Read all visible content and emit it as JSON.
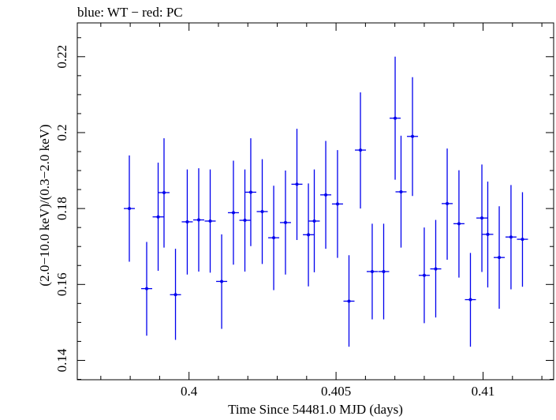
{
  "chart_data": {
    "type": "scatter",
    "title": "blue: WT − red: PC",
    "xlabel": "Time Since 54481.0 MJD (days)",
    "ylabel": "(2.0−10.0 keV)/(0.3−2.0 keV)",
    "xlim": [
      0.3962,
      0.4124
    ],
    "ylim": [
      0.1349,
      0.2289
    ],
    "xticks": [
      0.4,
      0.405,
      0.41
    ],
    "xtick_labels": [
      "0.4",
      "0.405",
      "0.41"
    ],
    "yticks": [
      0.14,
      0.16,
      0.18,
      0.2,
      0.22
    ],
    "ytick_labels": [
      "0.14",
      "0.16",
      "0.18",
      "0.2",
      "0.22"
    ],
    "grid": false,
    "color": "#0000ee",
    "series": [
      {
        "points": [
          {
            "x": 0.39797,
            "y": 0.18,
            "yerr_low": 0.166,
            "yerr_high": 0.194
          },
          {
            "x": 0.39856,
            "y": 0.1589,
            "yerr_low": 0.1465,
            "yerr_high": 0.1712
          },
          {
            "x": 0.39895,
            "y": 0.1778,
            "yerr_low": 0.1636,
            "yerr_high": 0.1921
          },
          {
            "x": 0.39915,
            "y": 0.1842,
            "yerr_low": 0.1697,
            "yerr_high": 0.1985
          },
          {
            "x": 0.39954,
            "y": 0.1573,
            "yerr_low": 0.1454,
            "yerr_high": 0.1694
          },
          {
            "x": 0.39994,
            "y": 0.1765,
            "yerr_low": 0.1626,
            "yerr_high": 0.1903
          },
          {
            "x": 0.40033,
            "y": 0.177,
            "yerr_low": 0.1634,
            "yerr_high": 0.1906
          },
          {
            "x": 0.40072,
            "y": 0.1767,
            "yerr_low": 0.1631,
            "yerr_high": 0.1903
          },
          {
            "x": 0.40111,
            "y": 0.1608,
            "yerr_low": 0.1483,
            "yerr_high": 0.1732
          },
          {
            "x": 0.40151,
            "y": 0.1789,
            "yerr_low": 0.1652,
            "yerr_high": 0.1926
          },
          {
            "x": 0.4019,
            "y": 0.1769,
            "yerr_low": 0.1634,
            "yerr_high": 0.1903
          },
          {
            "x": 0.4021,
            "y": 0.1843,
            "yerr_low": 0.1701,
            "yerr_high": 0.1985
          },
          {
            "x": 0.40249,
            "y": 0.1792,
            "yerr_low": 0.1654,
            "yerr_high": 0.193
          },
          {
            "x": 0.40288,
            "y": 0.1723,
            "yerr_low": 0.1585,
            "yerr_high": 0.186
          },
          {
            "x": 0.40328,
            "y": 0.1763,
            "yerr_low": 0.1626,
            "yerr_high": 0.19
          },
          {
            "x": 0.40367,
            "y": 0.1864,
            "yerr_low": 0.1717,
            "yerr_high": 0.201
          },
          {
            "x": 0.40406,
            "y": 0.1731,
            "yerr_low": 0.1595,
            "yerr_high": 0.1866
          },
          {
            "x": 0.40426,
            "y": 0.1767,
            "yerr_low": 0.1632,
            "yerr_high": 0.1903
          },
          {
            "x": 0.40465,
            "y": 0.1836,
            "yerr_low": 0.1694,
            "yerr_high": 0.1978
          },
          {
            "x": 0.40505,
            "y": 0.1812,
            "yerr_low": 0.167,
            "yerr_high": 0.1954
          },
          {
            "x": 0.40544,
            "y": 0.1556,
            "yerr_low": 0.1436,
            "yerr_high": 0.1677
          },
          {
            "x": 0.40583,
            "y": 0.1954,
            "yerr_low": 0.18,
            "yerr_high": 0.2106
          },
          {
            "x": 0.40623,
            "y": 0.1634,
            "yerr_low": 0.1508,
            "yerr_high": 0.176
          },
          {
            "x": 0.40662,
            "y": 0.1634,
            "yerr_low": 0.1508,
            "yerr_high": 0.176
          },
          {
            "x": 0.40701,
            "y": 0.2038,
            "yerr_low": 0.1876,
            "yerr_high": 0.22
          },
          {
            "x": 0.40721,
            "y": 0.1844,
            "yerr_low": 0.1697,
            "yerr_high": 0.1992
          },
          {
            "x": 0.4076,
            "y": 0.199,
            "yerr_low": 0.1833,
            "yerr_high": 0.2146
          },
          {
            "x": 0.408,
            "y": 0.1624,
            "yerr_low": 0.1498,
            "yerr_high": 0.175
          },
          {
            "x": 0.40839,
            "y": 0.1641,
            "yerr_low": 0.1513,
            "yerr_high": 0.177
          },
          {
            "x": 0.40878,
            "y": 0.1813,
            "yerr_low": 0.1665,
            "yerr_high": 0.1958
          },
          {
            "x": 0.40918,
            "y": 0.176,
            "yerr_low": 0.1618,
            "yerr_high": 0.1901
          },
          {
            "x": 0.40957,
            "y": 0.156,
            "yerr_low": 0.1436,
            "yerr_high": 0.1683
          },
          {
            "x": 0.40996,
            "y": 0.1775,
            "yerr_low": 0.1633,
            "yerr_high": 0.1916
          },
          {
            "x": 0.41016,
            "y": 0.1732,
            "yerr_low": 0.1592,
            "yerr_high": 0.1871
          },
          {
            "x": 0.41055,
            "y": 0.1671,
            "yerr_low": 0.1536,
            "yerr_high": 0.1806
          },
          {
            "x": 0.41095,
            "y": 0.1725,
            "yerr_low": 0.1587,
            "yerr_high": 0.1862
          },
          {
            "x": 0.41134,
            "y": 0.1719,
            "yerr_low": 0.1594,
            "yerr_high": 0.1843
          }
        ]
      }
    ]
  }
}
